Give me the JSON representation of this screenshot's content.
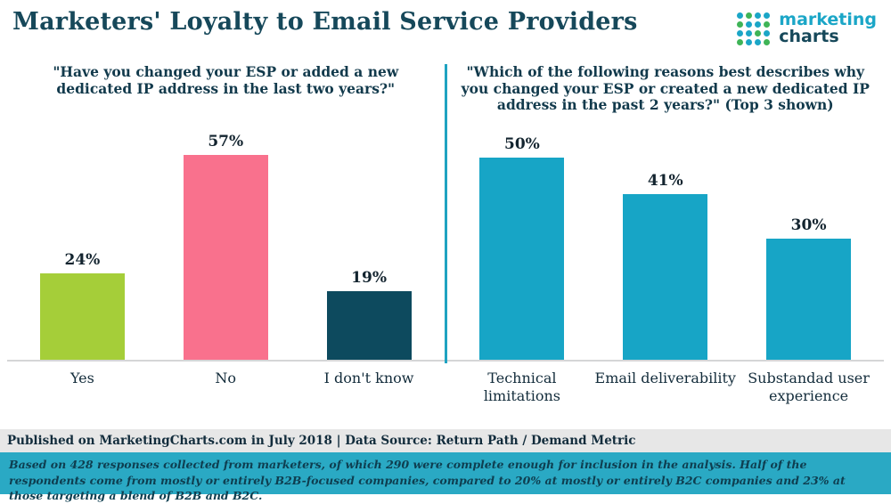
{
  "header": {
    "title": "Marketers' Loyalty to Email Service Providers",
    "logo": {
      "word1": "marketing",
      "word2": "charts"
    }
  },
  "colors": {
    "brand_teal": "#1ba6c7",
    "brand_dark": "#16485a",
    "divider": "#1fa3c1",
    "footer_note_bg": "#2aa9c4",
    "footer_pub_bg": "#e7e7e7"
  },
  "chart_data": [
    {
      "type": "bar",
      "title": "\"Have you changed your ESP or added a new dedicated IP address in the last two years?\"",
      "categories": [
        "Yes",
        "No",
        "I don't know"
      ],
      "values": [
        24,
        57,
        19
      ],
      "value_labels": [
        "24%",
        "57%",
        "19%"
      ],
      "bar_colors": [
        "#a5ce39",
        "#f9718d",
        "#0d4a5e"
      ],
      "xlabel": "",
      "ylabel": "",
      "ylim": [
        0,
        62
      ],
      "grid": false,
      "legend": "none"
    },
    {
      "type": "bar",
      "title": "\"Which of the following reasons best describes why you changed your ESP or created a new dedicated IP address in the past 2 years?\" (Top 3 shown)",
      "categories": [
        "Technical limitations",
        "Email deliverability",
        "Substandad user experience"
      ],
      "values": [
        50,
        41,
        30
      ],
      "value_labels": [
        "50%",
        "41%",
        "30%"
      ],
      "bar_colors": [
        "#17a5c6",
        "#17a5c6",
        "#17a5c6"
      ],
      "xlabel": "",
      "ylabel": "",
      "ylim": [
        0,
        55
      ],
      "grid": false,
      "legend": "none"
    }
  ],
  "footer": {
    "published": "Published on MarketingCharts.com in July 2018 | Data Source: Return Path / Demand Metric",
    "note": "Based on 428 responses collected from marketers, of which 290 were complete enough for inclusion in the analysis. Half of the respondents come from mostly or entirely B2B-focused companies, compared to 20% at mostly or entirely B2C companies and 23% at those targeting a blend of B2B and B2C."
  }
}
